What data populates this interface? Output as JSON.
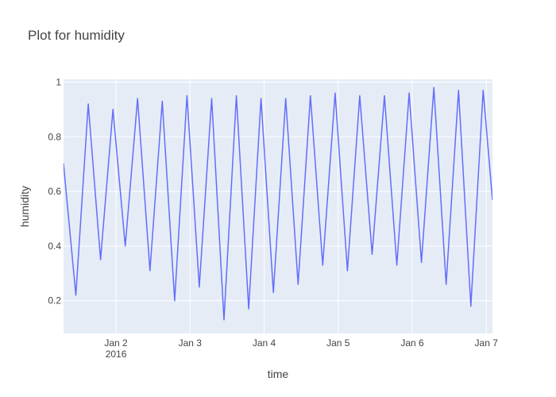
{
  "chart_data": {
    "type": "line",
    "title": "Plot for humidity",
    "xlabel": "time",
    "ylabel": "humidity",
    "x_range": [
      "2016-01-01T07:00",
      "2016-01-07T02:00"
    ],
    "ylim": [
      0.08,
      1.01
    ],
    "grid": true,
    "colors": {
      "plot_bg": "#E5ECF6",
      "grid": "#FFFFFF",
      "line": "#636EFA"
    },
    "x_ticks": [
      {
        "at": "2016-01-02",
        "label": "Jan 2",
        "sublabel": "2016"
      },
      {
        "at": "2016-01-03",
        "label": "Jan 3"
      },
      {
        "at": "2016-01-04",
        "label": "Jan 4"
      },
      {
        "at": "2016-01-05",
        "label": "Jan 5"
      },
      {
        "at": "2016-01-06",
        "label": "Jan 6"
      },
      {
        "at": "2016-01-07",
        "label": "Jan 7"
      }
    ],
    "y_ticks": [
      {
        "value": 0.2,
        "label": "0.2"
      },
      {
        "value": 0.4,
        "label": "0.4"
      },
      {
        "value": 0.6,
        "label": "0.6"
      },
      {
        "value": 0.8,
        "label": "0.8"
      },
      {
        "value": 1.0,
        "label": "1"
      }
    ],
    "series": [
      {
        "x": [
          "2016-01-01T07:00",
          "2016-01-01T11:00",
          "2016-01-01T15:00",
          "2016-01-01T19:00",
          "2016-01-01T23:00",
          "2016-01-02T03:00",
          "2016-01-02T07:00",
          "2016-01-02T11:00",
          "2016-01-02T15:00",
          "2016-01-02T19:00",
          "2016-01-02T23:00",
          "2016-01-03T03:00",
          "2016-01-03T07:00",
          "2016-01-03T11:00",
          "2016-01-03T15:00",
          "2016-01-03T19:00",
          "2016-01-03T23:00",
          "2016-01-04T03:00",
          "2016-01-04T07:00",
          "2016-01-04T11:00",
          "2016-01-04T15:00",
          "2016-01-04T19:00",
          "2016-01-04T23:00",
          "2016-01-05T03:00",
          "2016-01-05T07:00",
          "2016-01-05T11:00",
          "2016-01-05T15:00",
          "2016-01-05T19:00",
          "2016-01-05T23:00",
          "2016-01-06T03:00",
          "2016-01-06T07:00",
          "2016-01-06T11:00",
          "2016-01-06T15:00",
          "2016-01-06T19:00",
          "2016-01-06T23:00",
          "2016-01-07T02:00"
        ],
        "y": [
          0.7,
          0.22,
          0.92,
          0.35,
          0.9,
          0.4,
          0.94,
          0.31,
          0.93,
          0.2,
          0.95,
          0.25,
          0.94,
          0.13,
          0.95,
          0.17,
          0.94,
          0.23,
          0.94,
          0.26,
          0.95,
          0.33,
          0.96,
          0.31,
          0.95,
          0.37,
          0.95,
          0.33,
          0.96,
          0.34,
          0.98,
          0.26,
          0.97,
          0.18,
          0.97,
          0.57
        ]
      }
    ]
  }
}
